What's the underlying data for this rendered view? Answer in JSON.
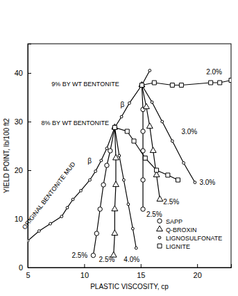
{
  "chart_data": {
    "type": "line",
    "x_label": "PLASTIC VISCOSITY, cp",
    "y_label": "YIELD POINT, lb/100 ft2",
    "xlim": [
      5,
      23
    ],
    "ylim": [
      0,
      46
    ],
    "xticks": [
      5,
      10,
      15,
      20
    ],
    "yticks": [
      0,
      10,
      20,
      30,
      40
    ],
    "grid": false,
    "legend": "lower right",
    "color": "#000000",
    "series": [
      {
        "marker": "dot",
        "line_style": "solid",
        "color": "#000000",
        "x": [
          5,
          6,
          7,
          8,
          8.5,
          9,
          9.7,
          10.5,
          11,
          11.5,
          12,
          12.7,
          13.3,
          14,
          15.1,
          15.8
        ],
        "values": [
          5.5,
          7.5,
          9,
          10.5,
          12.3,
          14,
          15.8,
          18,
          19.8,
          22,
          24.5,
          28.8,
          31,
          33.8,
          37.5,
          40.5
        ]
      },
      {
        "name": "SAPP",
        "marker": "circle",
        "line_style": "solid",
        "color": "#000000",
        "x": [
          12.7,
          12.3,
          12.0,
          11.7,
          11.4,
          11.1,
          10.8,
          null,
          15.1,
          15.2,
          15.2,
          15.2,
          15.2,
          15.2
        ],
        "values": [
          28.8,
          24,
          21,
          17,
          12,
          7,
          2.5,
          null,
          37.5,
          32.5,
          28,
          24,
          18,
          12
        ]
      },
      {
        "name": "Q-BROXIN",
        "marker": "triangle",
        "line_style": "solid",
        "color": "#000000",
        "x": [
          12.7,
          12.8,
          12.8,
          12.7,
          12.7,
          12.6,
          null,
          15.1,
          15.5,
          15.8,
          16.1,
          16.4,
          16.7
        ],
        "values": [
          28.8,
          22.5,
          17,
          12,
          7,
          2.5,
          null,
          37.5,
          33,
          29,
          24,
          19,
          14
        ]
      },
      {
        "name": "LIGNOSULFONATE",
        "marker": "dot",
        "line_style": "solid",
        "color": "#000000",
        "x": [
          12.7,
          13.1,
          13.5,
          13.9,
          14.3,
          14.6,
          null,
          15.1,
          16.0,
          16.9,
          17.8,
          18.8,
          19.8
        ],
        "values": [
          28.8,
          23,
          18,
          13,
          8,
          4,
          null,
          37.5,
          34,
          30,
          26,
          21.5,
          17.5
        ]
      },
      {
        "name": "LIGNITE",
        "marker": "square",
        "line_style": "solid",
        "color": "#000000",
        "x": [
          12.7,
          13.8,
          14.4,
          15.4,
          16.4,
          17.4,
          18.3,
          null,
          15.1,
          16.2,
          17.8,
          18.6,
          21.2,
          22.0,
          23.0
        ],
        "values": [
          28.8,
          28,
          26,
          22.5,
          20,
          19,
          18,
          null,
          37.5,
          38,
          37.5,
          37.5,
          38,
          38,
          38.5
        ]
      }
    ],
    "annotations": [
      {
        "text": "ORIGINAL BENTONITE MUD",
        "x": 7.0,
        "y": 14.5
      },
      {
        "text": "9% BY WT BENTONITE",
        "x": 7.1,
        "y": 37.3
      },
      {
        "text": "8% BY WT BENTONITE",
        "x": 6.2,
        "y": 29.3
      },
      {
        "text": "β",
        "x": 13.2,
        "y": 33
      },
      {
        "text": "β",
        "x": 10.3,
        "y": 21.5
      },
      {
        "text": "2.0%",
        "x": 20.8,
        "y": 39.7
      },
      {
        "text": "3.0%",
        "x": 18.6,
        "y": 27.5
      },
      {
        "text": "3.0%",
        "x": 20.2,
        "y": 17
      },
      {
        "text": "2.5%",
        "x": 15.5,
        "y": 10.5
      },
      {
        "text": "2.5%",
        "x": 17.0,
        "y": 13
      },
      {
        "text": "2.5%",
        "x": 8.9,
        "y": 2
      },
      {
        "text": "2.5%",
        "x": 11.3,
        "y": 1.2
      },
      {
        "text": "4.0%",
        "x": 13.5,
        "y": 1.2
      }
    ]
  }
}
